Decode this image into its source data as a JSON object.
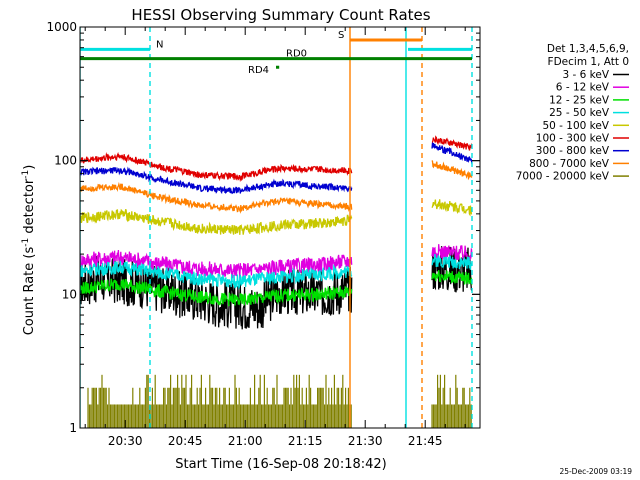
{
  "chart_data": {
    "type": "line",
    "title": "HESSI Observing Summary Count Rates",
    "xlabel": "Start Time (16-Sep-08 20:18:42)",
    "ylabel_main": "Count Rate (s",
    "ylabel_sup1": "-1",
    "ylabel_mid": " detector",
    "ylabel_sup2": "-1",
    "ylabel_end": ")",
    "footer": "25-Dec-2009 03:19",
    "y_scale": "log",
    "ylim": [
      1,
      1000
    ],
    "y_ticks": [
      "1",
      "10",
      "100",
      "1000"
    ],
    "x_ticks": [
      "20:30",
      "20:45",
      "21:00",
      "21:15",
      "21:30",
      "21:45"
    ],
    "x_tick_minutes": [
      11.3,
      26.3,
      41.3,
      56.3,
      71.3,
      86.3
    ],
    "xlim_minutes": [
      0,
      100
    ],
    "legend_header": [
      "Det 1,3,4,5,6,9,",
      "FDecim 1, Att 0"
    ],
    "series": [
      {
        "name": "3 - 6 keV",
        "color": "#000000",
        "knots": [
          [
            0,
            12
          ],
          [
            5,
            13
          ],
          [
            15,
            12
          ],
          [
            25,
            10
          ],
          [
            35,
            8.5
          ],
          [
            45,
            8
          ],
          [
            50,
            10.5
          ],
          [
            60,
            10
          ],
          [
            68,
            11
          ]
        ],
        "second": [
          [
            88,
            16
          ],
          [
            98,
            15
          ]
        ],
        "noise": 0.18
      },
      {
        "name": "6 - 12 keV",
        "color": "#e000e0",
        "knots": [
          [
            0,
            18
          ],
          [
            10,
            19
          ],
          [
            20,
            17
          ],
          [
            30,
            15.5
          ],
          [
            40,
            15
          ],
          [
            50,
            16
          ],
          [
            60,
            16.5
          ],
          [
            68,
            18
          ]
        ],
        "second": [
          [
            88,
            21
          ],
          [
            98,
            20
          ]
        ],
        "noise": 0.06
      },
      {
        "name": "12 - 25 keV",
        "color": "#00e000",
        "knots": [
          [
            0,
            11
          ],
          [
            10,
            12
          ],
          [
            20,
            10.5
          ],
          [
            30,
            9.5
          ],
          [
            40,
            9
          ],
          [
            50,
            9.8
          ],
          [
            60,
            10
          ],
          [
            68,
            10.5
          ]
        ],
        "second": [
          [
            88,
            14
          ],
          [
            98,
            13
          ]
        ],
        "noise": 0.05
      },
      {
        "name": "25 - 50 keV",
        "color": "#00e0e0",
        "knots": [
          [
            0,
            15
          ],
          [
            10,
            16
          ],
          [
            20,
            14.5
          ],
          [
            30,
            13
          ],
          [
            40,
            12.5
          ],
          [
            50,
            13.5
          ],
          [
            60,
            14
          ],
          [
            68,
            15
          ]
        ],
        "second": [
          [
            88,
            18
          ],
          [
            98,
            17
          ]
        ],
        "noise": 0.05
      },
      {
        "name": "50 - 100 keV",
        "color": "#c8c800",
        "knots": [
          [
            0,
            37
          ],
          [
            10,
            40
          ],
          [
            20,
            35
          ],
          [
            30,
            31
          ],
          [
            40,
            30
          ],
          [
            50,
            33
          ],
          [
            60,
            34
          ],
          [
            68,
            36
          ]
        ],
        "second": [
          [
            88,
            48
          ],
          [
            98,
            43
          ]
        ],
        "noise": 0.04
      },
      {
        "name": "100 - 300 keV",
        "color": "#e00000",
        "knots": [
          [
            0,
            100
          ],
          [
            10,
            108
          ],
          [
            20,
            90
          ],
          [
            30,
            78
          ],
          [
            40,
            76
          ],
          [
            50,
            88
          ],
          [
            60,
            86
          ],
          [
            68,
            84
          ]
        ],
        "second": [
          [
            88,
            145
          ],
          [
            98,
            125
          ]
        ],
        "noise": 0.025
      },
      {
        "name": "300 - 800 keV",
        "color": "#0000d0",
        "knots": [
          [
            0,
            82
          ],
          [
            10,
            85
          ],
          [
            20,
            72
          ],
          [
            30,
            62
          ],
          [
            40,
            60
          ],
          [
            50,
            68
          ],
          [
            60,
            64
          ],
          [
            68,
            62
          ]
        ],
        "second": [
          [
            88,
            130
          ],
          [
            98,
            100
          ]
        ],
        "noise": 0.025
      },
      {
        "name": "800 - 7000 keV",
        "color": "#ff8000",
        "knots": [
          [
            0,
            62
          ],
          [
            10,
            64
          ],
          [
            20,
            53
          ],
          [
            30,
            46
          ],
          [
            40,
            44
          ],
          [
            50,
            50
          ],
          [
            60,
            47
          ],
          [
            68,
            45
          ]
        ],
        "second": [
          [
            88,
            95
          ],
          [
            98,
            76
          ]
        ],
        "noise": 0.025
      },
      {
        "name": "7000 - 20000 keV",
        "color": "#808000",
        "knots": [
          [
            0,
            1.5
          ],
          [
            68,
            1.5
          ]
        ],
        "second": [
          [
            88,
            1.5
          ],
          [
            98,
            1.5
          ]
        ],
        "noise": 0.3
      }
    ],
    "flags": [
      {
        "label": "N",
        "color": "#00e0e0",
        "y": 680,
        "segments": [
          [
            0,
            17.5
          ],
          [
            82,
            98
          ]
        ],
        "label_x": 19
      },
      {
        "label": "S",
        "color": "#ff8000",
        "y": 800,
        "segments": [
          [
            67.5,
            85.5
          ]
        ],
        "label_x": 64.5
      },
      {
        "label": "RD0",
        "color": "#008000",
        "y": 580,
        "segments": [
          [
            0,
            98
          ]
        ],
        "label_x": 51.5
      },
      {
        "label": "RD4",
        "color": "#008000",
        "y": 500,
        "segments": [
          [
            49,
            49.8
          ]
        ],
        "label_x": 42
      }
    ],
    "vlines": [
      {
        "x": 0,
        "color": "#00e0e0",
        "style": "solid"
      },
      {
        "x": 17.5,
        "color": "#00e0e0",
        "style": "dashed"
      },
      {
        "x": 67.5,
        "color": "#ff8000",
        "style": "solid"
      },
      {
        "x": 81.5,
        "color": "#00e0e0",
        "style": "solid"
      },
      {
        "x": 85.5,
        "color": "#ff8000",
        "style": "dashed"
      },
      {
        "x": 98,
        "color": "#00e0e0",
        "style": "dashed"
      }
    ],
    "gap_minutes": [
      68,
      88
    ]
  }
}
